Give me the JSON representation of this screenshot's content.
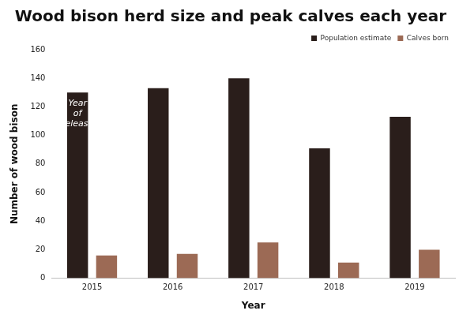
{
  "chart_data": {
    "type": "bar",
    "title": "Wood bison herd size and peak calves each year",
    "x_label": "Year",
    "y_label": "Number of wood bison",
    "categories": [
      "2015",
      "2016",
      "2017",
      "2018",
      "2019"
    ],
    "series": [
      {
        "name": "Population estimate",
        "color": "#2a1e1b",
        "values": [
          130,
          133,
          140,
          91,
          113
        ]
      },
      {
        "name": "Calves born",
        "color": "#9c6a55",
        "values": [
          16,
          17,
          25,
          11,
          20
        ]
      }
    ],
    "ylim": [
      0,
      160
    ],
    "yticks": [
      0,
      20,
      40,
      60,
      80,
      100,
      120,
      140,
      160
    ],
    "grid": false,
    "legend": "top right",
    "annotations": [
      {
        "text": "Year of release",
        "x": "2015",
        "series": "Population estimate"
      }
    ]
  }
}
